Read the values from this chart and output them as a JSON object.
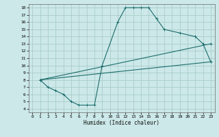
{
  "xlabel": "Humidex (Indice chaleur)",
  "background_color": "#cce8e8",
  "grid_color": "#aacccc",
  "line_color": "#1a6b6b",
  "xlim": [
    -0.5,
    23.5
  ],
  "ylim": [
    3.5,
    18.5
  ],
  "xticks": [
    0,
    1,
    2,
    3,
    4,
    5,
    6,
    7,
    8,
    9,
    10,
    11,
    12,
    13,
    14,
    15,
    16,
    17,
    18,
    19,
    20,
    21,
    22,
    23
  ],
  "yticks": [
    4,
    5,
    6,
    7,
    8,
    9,
    10,
    11,
    12,
    13,
    14,
    15,
    16,
    17,
    18
  ],
  "curve1_x": [
    1,
    2,
    3,
    4,
    5,
    6,
    7,
    8,
    9,
    11,
    12,
    13,
    14,
    15,
    16,
    17,
    19,
    21,
    22,
    23
  ],
  "curve1_y": [
    8,
    7,
    6.5,
    6,
    5,
    4.5,
    4.5,
    4.5,
    10,
    16,
    18,
    18,
    18,
    18,
    16.5,
    15,
    14.5,
    14,
    13,
    10.5
  ],
  "curve2_x": [
    1,
    23
  ],
  "curve2_y": [
    8,
    13
  ],
  "curve3_x": [
    1,
    23
  ],
  "curve3_y": [
    8,
    10.5
  ]
}
